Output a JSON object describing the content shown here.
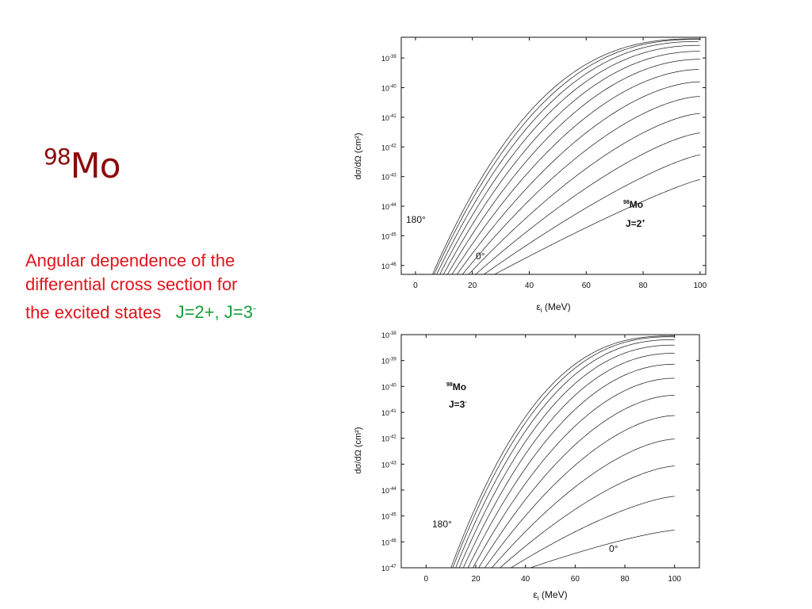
{
  "slide": {
    "title_sup": "98",
    "title_main": "Mo",
    "caption": {
      "text": "Angular dependence of the differential cross section for the excited states",
      "j_plus": "J=2+,  J=3",
      "j_minus_sup": "-"
    }
  },
  "colors": {
    "title": "#8B0A0A",
    "caption": "#e0141c",
    "caption_highlight": "#16a03a",
    "curves": "#222222"
  },
  "chart_data": [
    {
      "type": "line",
      "label_element_sup": "98",
      "label_element": "Mo",
      "label_state": "J=2",
      "label_state_sup": "+",
      "annotation_high": "180°",
      "annotation_low": "0°",
      "xlabel_main": "ε",
      "xlabel_sub": "i",
      "xlabel_rest": " (MeV)",
      "ylabel": "dσ/dΩ (cm²)",
      "x_ticks": [
        "0",
        "20",
        "40",
        "60",
        "80",
        "100"
      ],
      "y_tick_base": "10",
      "y_tick_exponents": [
        "-39",
        "-40",
        "-41",
        "-42",
        "-43",
        "-44",
        "-45",
        "-46"
      ],
      "xlim": [
        -5,
        102
      ],
      "ylim_log10": [
        -46.3,
        -38.3
      ],
      "scale_y": "log",
      "curve_count": 13,
      "series_param": {
        "x_cutoff_180": 4.2,
        "x_cutoff_0": 20,
        "y_max_180": -38.35,
        "y_max_0": -43.1,
        "shape_k_180": 2.6,
        "shape_k_0": 1.15
      }
    },
    {
      "type": "line",
      "label_element_sup": "98",
      "label_element": "Mo",
      "label_state": "J=3",
      "label_state_sup": "-",
      "annotation_high": "180°",
      "annotation_low": "0°",
      "xlabel_main": "ε",
      "xlabel_sub": "i",
      "xlabel_rest": " (MeV)",
      "ylabel": "dσ/dΩ (cm²)",
      "x_ticks": [
        "0",
        "20",
        "40",
        "60",
        "80",
        "100"
      ],
      "y_tick_base": "10",
      "y_tick_exponents": [
        "-38",
        "-39",
        "-40",
        "-41",
        "-42",
        "-43",
        "-44",
        "-45",
        "-46",
        "-47"
      ],
      "xlim": [
        -10,
        110
      ],
      "ylim_log10": [
        -47,
        -38
      ],
      "scale_y": "log",
      "curve_count": 13,
      "series_param": {
        "x_cutoff_180": 8.5,
        "x_cutoff_0": 30,
        "y_max_180": -38.05,
        "y_max_0": -45.55,
        "shape_k_180": 2.6,
        "shape_k_0": 1.3
      }
    }
  ]
}
